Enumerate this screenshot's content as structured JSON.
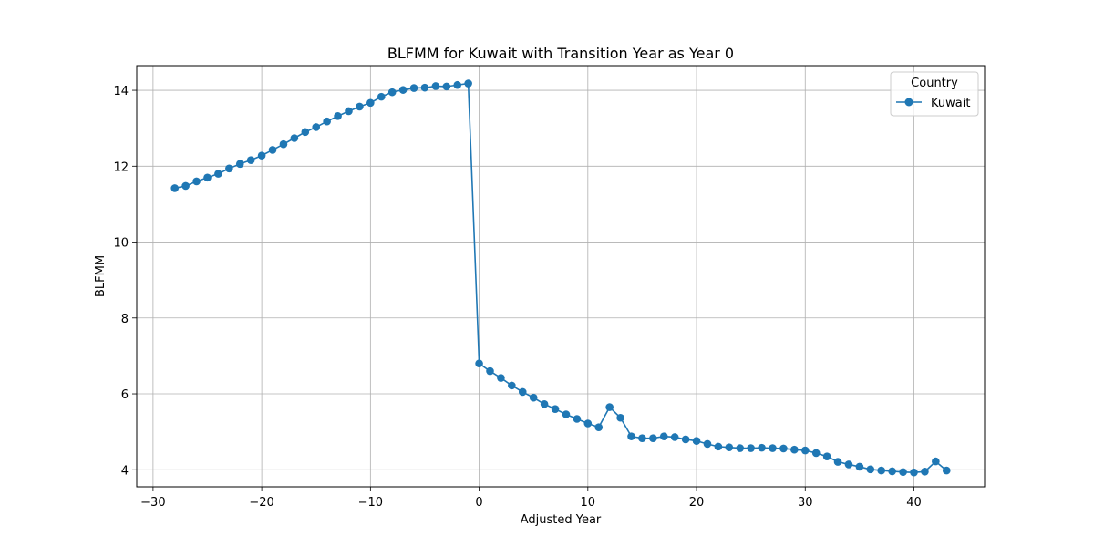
{
  "chart_data": {
    "type": "line",
    "title": "BLFMM for Kuwait with Transition Year as Year 0",
    "xlabel": "Adjusted Year",
    "ylabel": "BLFMM",
    "xlim": [
      -31.5,
      46.5
    ],
    "ylim": [
      3.55,
      14.65
    ],
    "xticks": [
      -30,
      -20,
      -10,
      0,
      10,
      20,
      30,
      40
    ],
    "yticks": [
      4,
      6,
      8,
      10,
      12,
      14
    ],
    "xtick_labels": [
      "−30",
      "−20",
      "−10",
      "0",
      "10",
      "20",
      "30",
      "40"
    ],
    "ytick_labels": [
      "4",
      "6",
      "8",
      "10",
      12,
      "14"
    ],
    "grid": true,
    "legend": {
      "title": "Country",
      "placement": "top-right"
    },
    "series": [
      {
        "name": "Kuwait",
        "color": "#1f77b4",
        "marker": "circle",
        "x": [
          -28,
          -27,
          -26,
          -25,
          -24,
          -23,
          -22,
          -21,
          -20,
          -19,
          -18,
          -17,
          -16,
          -15,
          -14,
          -13,
          -12,
          -11,
          -10,
          -9,
          -8,
          -7,
          -6,
          -5,
          -4,
          -3,
          -2,
          -1,
          0,
          1,
          2,
          3,
          4,
          5,
          6,
          7,
          8,
          9,
          10,
          11,
          12,
          13,
          14,
          15,
          16,
          17,
          18,
          19,
          20,
          21,
          22,
          23,
          24,
          25,
          26,
          27,
          28,
          29,
          30,
          31,
          32,
          33,
          34,
          35,
          36,
          37,
          38,
          39,
          40,
          41,
          42,
          43
        ],
        "values": [
          11.42,
          11.48,
          11.6,
          11.7,
          11.8,
          11.94,
          12.06,
          12.16,
          12.28,
          12.43,
          12.58,
          12.74,
          12.9,
          13.03,
          13.18,
          13.32,
          13.45,
          13.57,
          13.67,
          13.83,
          13.95,
          14.01,
          14.06,
          14.07,
          14.11,
          14.1,
          14.14,
          14.18,
          6.8,
          6.6,
          6.42,
          6.22,
          6.05,
          5.9,
          5.73,
          5.6,
          5.46,
          5.34,
          5.22,
          5.12,
          5.65,
          5.37,
          4.88,
          4.83,
          4.83,
          4.88,
          4.86,
          4.8,
          4.76,
          4.68,
          4.61,
          4.59,
          4.57,
          4.57,
          4.58,
          4.57,
          4.56,
          4.53,
          4.51,
          4.44,
          4.35,
          4.21,
          4.14,
          4.08,
          4.01,
          3.98,
          3.96,
          3.94,
          3.93,
          3.95,
          4.22,
          3.98
        ]
      }
    ]
  }
}
